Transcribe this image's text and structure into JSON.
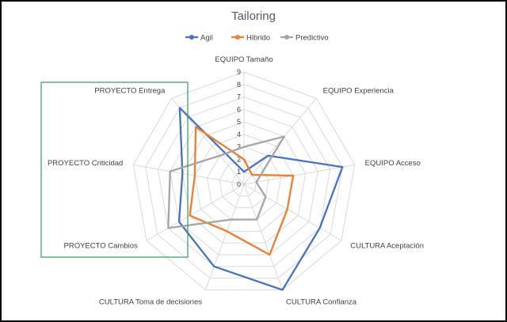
{
  "chart_data": {
    "type": "radar",
    "title": "Tailoring",
    "categories": [
      "EQUIPO Tamaño",
      "EQUIPO Experiencia",
      "EQUIPO Acceso",
      "CULTURA Aceptación",
      "CULTURA Confianza",
      "CULTURA Toma de decisiones",
      "PROYECTO Cambios",
      "PROYECTO Criticidad",
      "PROYECTO Entrega"
    ],
    "rmin": 0,
    "rmax": 9,
    "ticks": [
      "0",
      "1",
      "2",
      "3",
      "4",
      "5",
      "6",
      "7",
      "8",
      "9"
    ],
    "legend_position": "top",
    "grid": true,
    "series": [
      {
        "name": "Agil",
        "color": "#4472C4",
        "values": [
          1,
          3,
          8,
          7,
          9,
          7,
          6,
          5,
          8
        ]
      },
      {
        "name": "Hibrido",
        "color": "#ED7D31",
        "values": [
          2,
          1,
          4,
          4,
          6,
          4,
          5,
          4,
          6
        ]
      },
      {
        "name": "Predictivo",
        "color": "#A5A5A5",
        "values": [
          3,
          5,
          1,
          2,
          3,
          3,
          7,
          6,
          3
        ]
      }
    ]
  },
  "highlight_box_color": "#3A9A5B"
}
